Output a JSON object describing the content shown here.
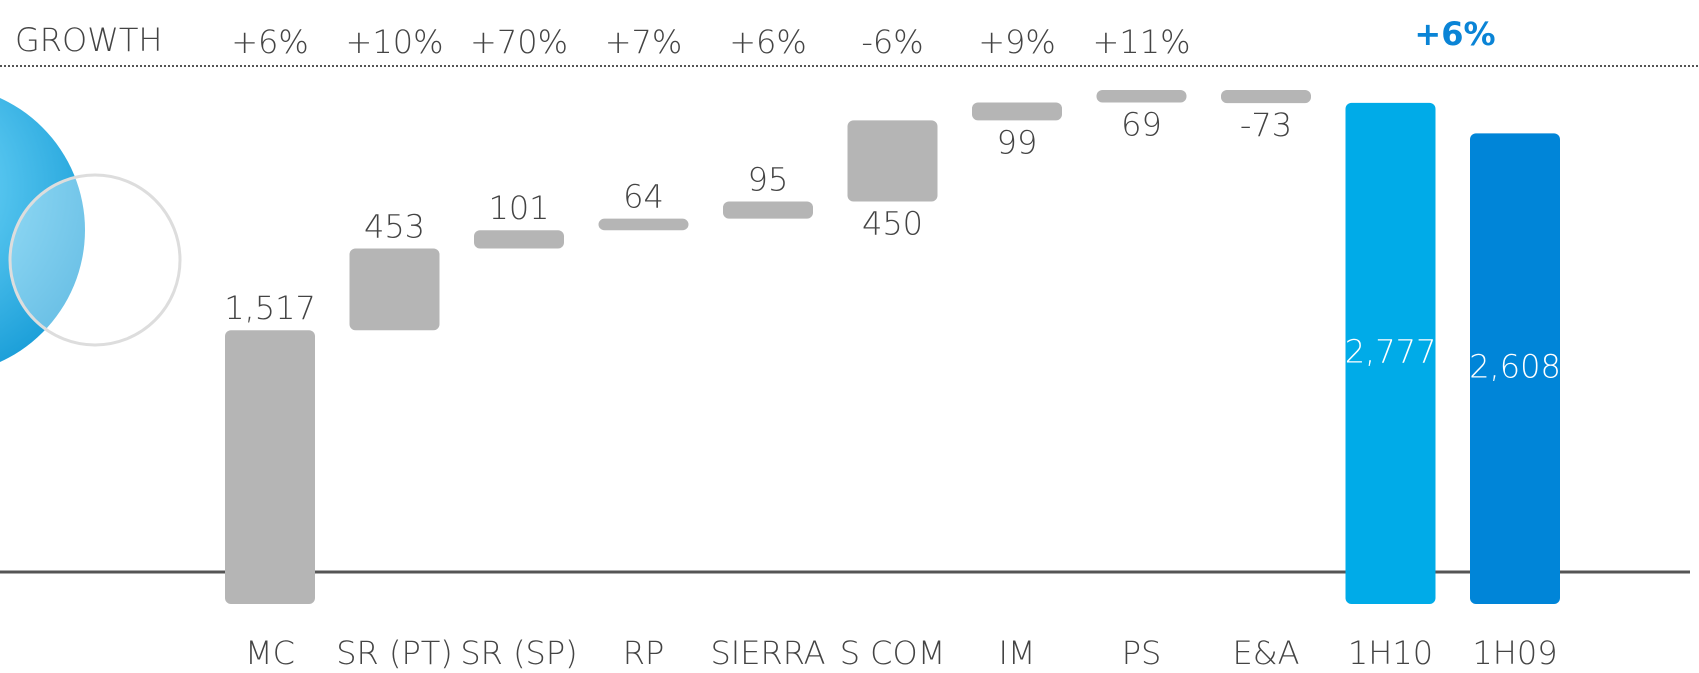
{
  "chart_data": {
    "type": "waterfall",
    "growth_title": "GROWTH",
    "growth": [
      "+6%",
      "+10%",
      "+70%",
      "+7%",
      "+6%",
      "-6%",
      "+9%",
      "+11%"
    ],
    "total_growth": "+6%",
    "categories": [
      "MC",
      "SR (PT)",
      "SR (SP)",
      "RP",
      "SIERRA",
      "S COM",
      "IM",
      "PS",
      "E&A",
      "1H10",
      "1H09"
    ],
    "values": [
      1517,
      453,
      101,
      64,
      95,
      450,
      99,
      69,
      -73,
      2777,
      2608
    ],
    "value_labels": [
      "1,517",
      "453",
      "101",
      "64",
      "95",
      "450",
      "99",
      "69",
      "-73",
      "2,777",
      "2,608"
    ],
    "colors": [
      "#b5b5b5",
      "#b5b5b5",
      "#b5b5b5",
      "#b5b5b5",
      "#b5b5b5",
      "#b5b5b5",
      "#b5b5b5",
      "#b5b5b5",
      "#b5b5b5",
      "#00abe8",
      "#0085d8"
    ]
  }
}
